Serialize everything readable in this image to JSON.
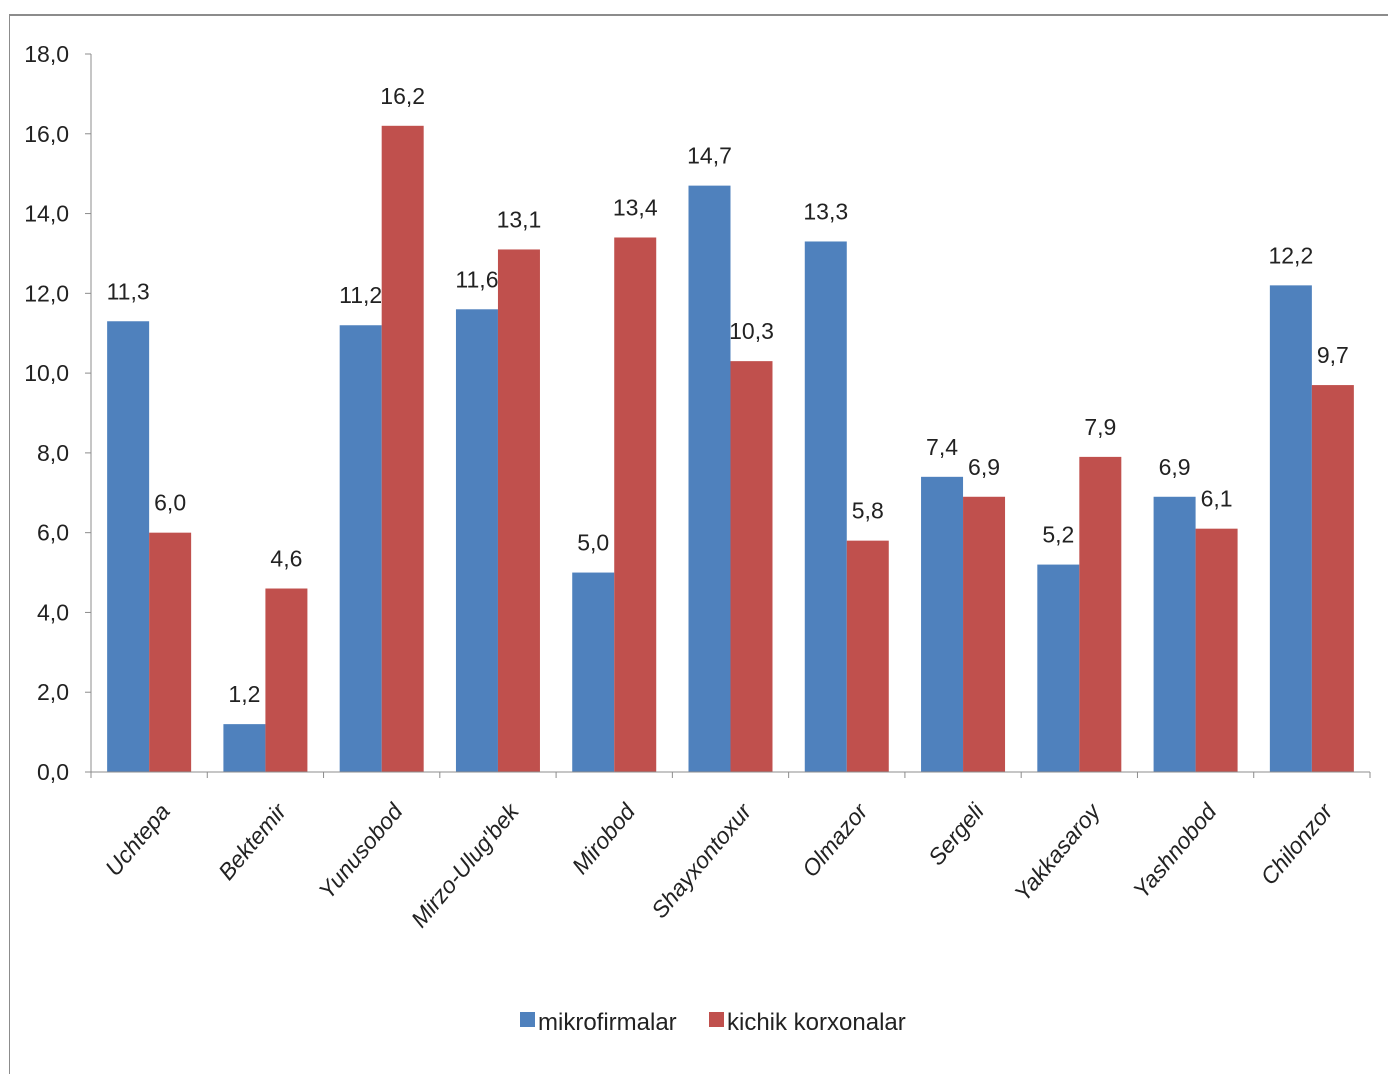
{
  "chart_data": {
    "type": "bar",
    "categories": [
      "Uchtepa",
      "Bektemir",
      "Yunusobod",
      "Mirzo-Ulug'bek",
      "Mirobod",
      "Shayxontoxur",
      "Olmazor",
      "Sergeli",
      "Yakkasaroy",
      "Yashnobod",
      "Chilonzor"
    ],
    "series": [
      {
        "name": "mikrofirmalar",
        "color": "#4F81BD",
        "values": [
          11.3,
          1.2,
          11.2,
          11.6,
          5.0,
          14.7,
          13.3,
          7.4,
          5.2,
          6.9,
          12.2
        ],
        "labels": [
          "11,3",
          "1,2",
          "11,2",
          "11,6",
          "5,0",
          "14,7",
          "13,3",
          "7,4",
          "5,2",
          "6,9",
          "12,2"
        ]
      },
      {
        "name": "kichik korxonalar",
        "color": "#C0504D",
        "values": [
          6.0,
          4.6,
          16.2,
          13.1,
          13.4,
          10.3,
          5.8,
          6.9,
          7.9,
          6.1,
          9.7
        ],
        "labels": [
          "6,0",
          "4,6",
          "16,2",
          "13,1",
          "13,4",
          "10,3",
          "5,8",
          "6,9",
          "7,9",
          "6,1",
          "9,7"
        ]
      }
    ],
    "ylim": [
      0,
      18
    ],
    "yticks": [
      0,
      2,
      4,
      6,
      8,
      10,
      12,
      14,
      16,
      18
    ],
    "ytick_labels": [
      "0,0",
      "2,0",
      "4,0",
      "6,0",
      "8,0",
      "10,0",
      "12,0",
      "14,0",
      "16,0",
      "18,0"
    ],
    "grid": false,
    "legend_position": "bottom",
    "title": "",
    "xlabel": "",
    "ylabel": ""
  }
}
